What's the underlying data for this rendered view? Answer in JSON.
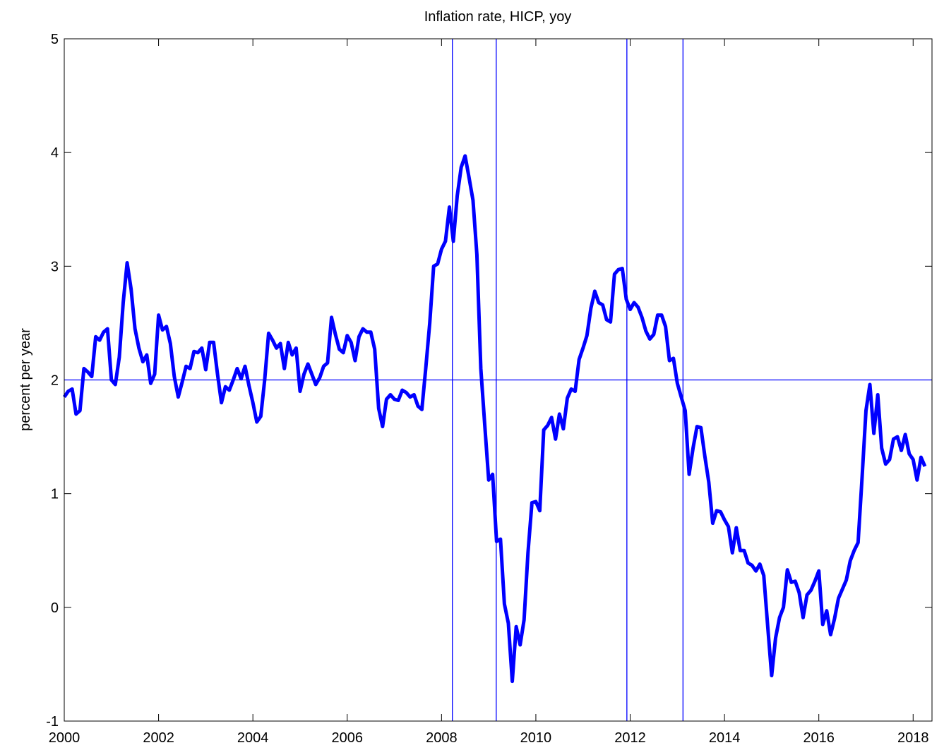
{
  "chart_data": {
    "type": "line",
    "title": "Inflation rate, HICP, yoy",
    "y_label": "percent per year",
    "x": [
      2000,
      2000.083,
      2000.167,
      2000.25,
      2000.333,
      2000.417,
      2000.5,
      2000.583,
      2000.667,
      2000.75,
      2000.833,
      2000.917,
      2001,
      2001.083,
      2001.167,
      2001.25,
      2001.333,
      2001.417,
      2001.5,
      2001.583,
      2001.667,
      2001.75,
      2001.833,
      2001.917,
      2002,
      2002.083,
      2002.167,
      2002.25,
      2002.333,
      2002.417,
      2002.5,
      2002.583,
      2002.667,
      2002.75,
      2002.833,
      2002.917,
      2003,
      2003.083,
      2003.167,
      2003.25,
      2003.333,
      2003.417,
      2003.5,
      2003.583,
      2003.667,
      2003.75,
      2003.833,
      2003.917,
      2004,
      2004.083,
      2004.167,
      2004.25,
      2004.333,
      2004.417,
      2004.5,
      2004.583,
      2004.667,
      2004.75,
      2004.833,
      2004.917,
      2005,
      2005.083,
      2005.167,
      2005.25,
      2005.333,
      2005.417,
      2005.5,
      2005.583,
      2005.667,
      2005.75,
      2005.833,
      2005.917,
      2006,
      2006.083,
      2006.167,
      2006.25,
      2006.333,
      2006.417,
      2006.5,
      2006.583,
      2006.667,
      2006.75,
      2006.833,
      2006.917,
      2007,
      2007.083,
      2007.167,
      2007.25,
      2007.333,
      2007.417,
      2007.5,
      2007.583,
      2007.667,
      2007.75,
      2007.833,
      2007.917,
      2008,
      2008.083,
      2008.167,
      2008.25,
      2008.333,
      2008.417,
      2008.5,
      2008.583,
      2008.667,
      2008.75,
      2008.833,
      2008.917,
      2009,
      2009.083,
      2009.167,
      2009.25,
      2009.333,
      2009.417,
      2009.5,
      2009.583,
      2009.667,
      2009.75,
      2009.833,
      2009.917,
      2010,
      2010.083,
      2010.167,
      2010.25,
      2010.333,
      2010.417,
      2010.5,
      2010.583,
      2010.667,
      2010.75,
      2010.833,
      2010.917,
      2011,
      2011.083,
      2011.167,
      2011.25,
      2011.333,
      2011.417,
      2011.5,
      2011.583,
      2011.667,
      2011.75,
      2011.833,
      2011.917,
      2012,
      2012.083,
      2012.167,
      2012.25,
      2012.333,
      2012.417,
      2012.5,
      2012.583,
      2012.667,
      2012.75,
      2012.833,
      2012.917,
      2013,
      2013.083,
      2013.167,
      2013.25,
      2013.333,
      2013.417,
      2013.5,
      2013.583,
      2013.667,
      2013.75,
      2013.833,
      2013.917,
      2014,
      2014.083,
      2014.167,
      2014.25,
      2014.333,
      2014.417,
      2014.5,
      2014.583,
      2014.667,
      2014.75,
      2014.833,
      2014.917,
      2015,
      2015.083,
      2015.167,
      2015.25,
      2015.333,
      2015.417,
      2015.5,
      2015.583,
      2015.667,
      2015.75,
      2015.833,
      2015.917,
      2016,
      2016.083,
      2016.167,
      2016.25,
      2016.333,
      2016.417,
      2016.5,
      2016.583,
      2016.667,
      2016.75,
      2016.833,
      2016.917,
      2017,
      2017.083,
      2017.167,
      2017.25,
      2017.333,
      2017.417,
      2017.5,
      2017.583,
      2017.667,
      2017.75,
      2017.833,
      2017.917,
      2018,
      2018.083,
      2018.167,
      2018.25
    ],
    "series": [
      {
        "color": "#0000ff",
        "values": [
          1.85,
          1.9,
          1.92,
          1.7,
          1.73,
          2.1,
          2.07,
          2.03,
          2.38,
          2.35,
          2.42,
          2.45,
          2.0,
          1.96,
          2.2,
          2.68,
          3.03,
          2.8,
          2.45,
          2.28,
          2.16,
          2.22,
          1.97,
          2.05,
          2.57,
          2.44,
          2.47,
          2.32,
          2.03,
          1.85,
          1.98,
          2.12,
          2.1,
          2.25,
          2.24,
          2.28,
          2.09,
          2.33,
          2.33,
          2.05,
          1.8,
          1.94,
          1.91,
          2.0,
          2.1,
          2.01,
          2.12,
          1.95,
          1.8,
          1.63,
          1.68,
          2.0,
          2.41,
          2.35,
          2.28,
          2.32,
          2.1,
          2.33,
          2.22,
          2.28,
          1.9,
          2.05,
          2.14,
          2.05,
          1.96,
          2.02,
          2.12,
          2.15,
          2.55,
          2.4,
          2.27,
          2.24,
          2.39,
          2.33,
          2.17,
          2.38,
          2.45,
          2.42,
          2.42,
          2.27,
          1.75,
          1.59,
          1.83,
          1.87,
          1.83,
          1.82,
          1.91,
          1.89,
          1.85,
          1.87,
          1.77,
          1.74,
          2.11,
          2.5,
          3.0,
          3.02,
          3.15,
          3.22,
          3.52,
          3.22,
          3.62,
          3.87,
          3.97,
          3.78,
          3.58,
          3.1,
          2.1,
          1.6,
          1.12,
          1.17,
          0.58,
          0.6,
          0.03,
          -0.14,
          -0.65,
          -0.17,
          -0.33,
          -0.11,
          0.48,
          0.92,
          0.93,
          0.85,
          1.56,
          1.6,
          1.67,
          1.48,
          1.7,
          1.57,
          1.84,
          1.92,
          1.9,
          2.18,
          2.28,
          2.39,
          2.63,
          2.78,
          2.68,
          2.66,
          2.53,
          2.51,
          2.93,
          2.97,
          2.98,
          2.71,
          2.62,
          2.68,
          2.64,
          2.55,
          2.43,
          2.36,
          2.4,
          2.57,
          2.57,
          2.47,
          2.17,
          2.19,
          1.97,
          1.85,
          1.73,
          1.17,
          1.4,
          1.59,
          1.58,
          1.33,
          1.1,
          0.74,
          0.85,
          0.84,
          0.77,
          0.71,
          0.48,
          0.7,
          0.5,
          0.5,
          0.39,
          0.37,
          0.32,
          0.38,
          0.28,
          -0.17,
          -0.6,
          -0.27,
          -0.09,
          0.0,
          0.33,
          0.22,
          0.23,
          0.13,
          -0.09,
          0.11,
          0.15,
          0.23,
          0.32,
          -0.15,
          -0.03,
          -0.24,
          -0.1,
          0.08,
          0.16,
          0.24,
          0.41,
          0.5,
          0.57,
          1.14,
          1.73,
          1.96,
          1.53,
          1.87,
          1.4,
          1.26,
          1.3,
          1.48,
          1.5,
          1.38,
          1.52,
          1.35,
          1.3,
          1.12,
          1.32,
          1.24
        ]
      }
    ],
    "vlines": [
      2008.23,
      2009.16,
      2011.93,
      2013.12
    ],
    "hlines": [
      2
    ],
    "ref_color": "#0000ff",
    "xlim": [
      2000,
      2018.4
    ],
    "xticks": [
      2000,
      2002,
      2004,
      2006,
      2008,
      2010,
      2012,
      2014,
      2016,
      2018
    ],
    "ylim": [
      -1,
      5
    ],
    "yticks": [
      -1,
      0,
      1,
      2,
      3,
      4,
      5
    ]
  }
}
